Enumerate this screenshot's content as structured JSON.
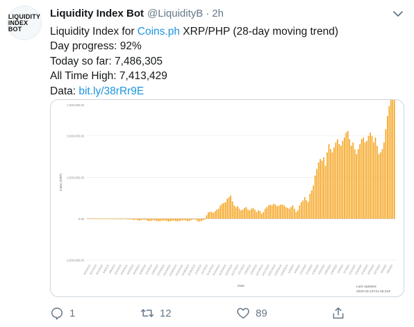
{
  "account": {
    "avatar_text": "LIQUIDITY\nINDEX\nBOT",
    "name": "Liquidity Index Bot",
    "handle": "@LiquidityB",
    "separator": "·",
    "time": "2h"
  },
  "tweet": {
    "line1_prefix": "Liquidity Index for ",
    "line1_link": "Coins.ph",
    "line1_suffix": " XRP/PHP (28-day moving trend)",
    "line2": "Day progress: 92%",
    "line3": "Today so far: 7,486,305",
    "line4": "All Time High: 7,413,429",
    "line5_prefix": "Data: ",
    "line5_link": "bit.ly/38rRr9E"
  },
  "actions": {
    "reply_count": "1",
    "retweet_count": "12",
    "like_count": "89"
  },
  "colors": {
    "bar": "#f5a623",
    "link": "#1b95e0",
    "muted": "#657786"
  },
  "chart_data": {
    "type": "bar",
    "ylabel": "Index (XRP)",
    "xlabel": "Date",
    "ylim": [
      -2600000,
      7000000
    ],
    "yticks": [
      -2500000,
      0,
      2500000,
      5000000,
      7500000
    ],
    "ytick_labels": [
      "-2,500,000.00",
      "0.00",
      "2,500,000.00",
      "5,000,000.00",
      "7,500,000.00"
    ],
    "grid": true,
    "footer_label": "Last Updated",
    "footer_value": "2020-03-10T21:48:22Z",
    "x_tick_labels": [
      "8/23/2019",
      "8/27/2019",
      "8/31/2019",
      "9/4/2019",
      "9/8/2019",
      "9/12/2019",
      "9/16/2019",
      "9/20/2019",
      "9/24/2019",
      "9/28/2019",
      "10/2/2019",
      "10/6/2019",
      "10/10/2019",
      "10/14/2019",
      "10/18/2019",
      "10/22/2019",
      "10/26/2019",
      "10/30/2019",
      "11/3/2019",
      "11/7/2019",
      "11/11/2019",
      "11/15/2019",
      "11/19/2019",
      "11/23/2019",
      "11/27/2019",
      "12/1/2019",
      "12/5/2019",
      "12/9/2019",
      "12/13/2019",
      "12/17/2019",
      "12/21/2019",
      "12/25/2019",
      "12/29/2019",
      "1/2/2020",
      "1/6/2020",
      "1/10/2020",
      "1/14/2020",
      "1/18/2020",
      "1/22/2020",
      "1/26/2020",
      "1/30/2020",
      "2/3/2020",
      "2/7/2020",
      "2/11/2020",
      "2/15/2020",
      "2/19/2020",
      "2/23/2020",
      "2/27/2020",
      "3/2/2020",
      "3/6/2020"
    ],
    "values": [
      20000,
      20000,
      15000,
      20000,
      10000,
      15000,
      20000,
      10000,
      5000,
      15000,
      20000,
      10000,
      10000,
      15000,
      20000,
      -10000,
      -5000,
      10000,
      15000,
      -20000,
      -10000,
      15000,
      20000,
      -30000,
      -50000,
      -40000,
      -60000,
      -80000,
      -50000,
      -100000,
      -120000,
      -90000,
      -70000,
      -60000,
      -80000,
      -130000,
      -150000,
      -120000,
      -90000,
      -110000,
      -140000,
      -160000,
      -150000,
      -120000,
      -130000,
      -100000,
      -150000,
      -170000,
      -160000,
      -130000,
      -110000,
      -140000,
      -160000,
      -150000,
      -120000,
      -100000,
      -80000,
      -120000,
      -150000,
      -130000,
      -90000,
      -60000,
      -40000,
      -80000,
      -160000,
      -170000,
      -140000,
      -100000,
      -50000,
      200000,
      380000,
      420000,
      400000,
      350000,
      450000,
      550000,
      600000,
      800000,
      900000,
      950000,
      1000000,
      1200000,
      1300000,
      1400000,
      1050000,
      800000,
      700000,
      750000,
      600000,
      500000,
      550000,
      650000,
      700000,
      550000,
      500000,
      600000,
      650000,
      550000,
      400000,
      500000,
      450000,
      300000,
      400000,
      600000,
      700000,
      800000,
      850000,
      800000,
      900000,
      850000,
      750000,
      800000,
      850000,
      850000,
      800000,
      700000,
      650000,
      600000,
      700000,
      800000,
      600000,
      400000,
      500000,
      800000,
      1000000,
      1100000,
      1300000,
      1100000,
      1000000,
      1500000,
      1700000,
      2000000,
      2600000,
      3000000,
      3400000,
      3600000,
      3500000,
      3700000,
      3200000,
      4000000,
      4500000,
      4200000,
      4000000,
      4300000,
      4600000,
      4800000,
      4500000,
      4400000,
      4700000,
      4900000,
      5200000,
      5300000,
      4800000,
      4400000,
      4600000,
      4200000,
      3900000,
      4200000,
      4500000,
      4800000,
      4900000,
      4600000,
      4700000,
      5000000,
      5200000,
      5000000,
      4600000,
      4900000,
      4400000,
      3900000,
      4000000,
      4200000,
      4600000,
      5400000,
      6200000,
      6800000,
      7200000,
      7350000,
      7413429
    ]
  }
}
